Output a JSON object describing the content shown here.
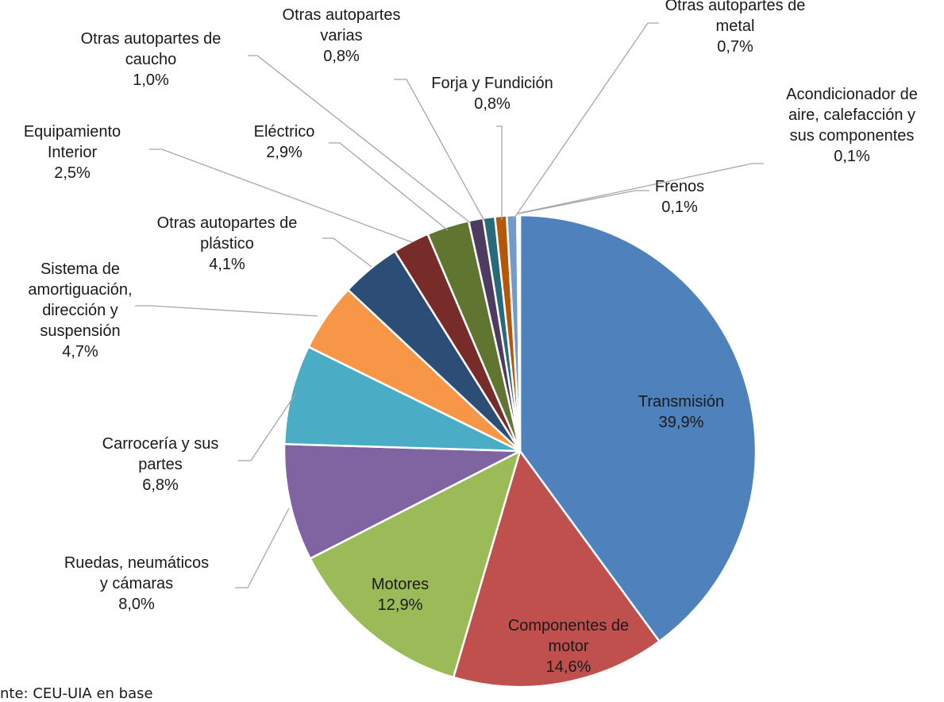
{
  "chart_data": {
    "type": "pie",
    "slices": [
      {
        "label": [
          "Transmisión"
        ],
        "pct": "39,9%",
        "value": 39.9,
        "color": "#4f81bd"
      },
      {
        "label": [
          "Componentes de",
          "motor"
        ],
        "pct": "14,6%",
        "value": 14.6,
        "color": "#c0504d"
      },
      {
        "label": [
          "Motores"
        ],
        "pct": "12,9%",
        "value": 12.9,
        "color": "#9bbb59"
      },
      {
        "label": [
          "Ruedas, neumáticos",
          "y cámaras"
        ],
        "pct": "8,0%",
        "value": 8.0,
        "color": "#8064a2"
      },
      {
        "label": [
          "Carrocería y sus",
          "partes"
        ],
        "pct": "6,8%",
        "value": 6.8,
        "color": "#4bacc6"
      },
      {
        "label": [
          "Sistema de",
          "amortiguación,",
          "dirección y",
          "suspensión"
        ],
        "pct": "4,7%",
        "value": 4.7,
        "color": "#f79646"
      },
      {
        "label": [
          "Otras autopartes de",
          "plástico"
        ],
        "pct": "4,1%",
        "value": 4.1,
        "color": "#2c4d75"
      },
      {
        "label": [
          "Equipamiento",
          "Interior"
        ],
        "pct": "2,5%",
        "value": 2.5,
        "color": "#772c2a"
      },
      {
        "label": [
          "Eléctrico"
        ],
        "pct": "2,9%",
        "value": 2.9,
        "color": "#5f7530"
      },
      {
        "label": [
          "Otras autopartes de",
          "caucho"
        ],
        "pct": "1,0%",
        "value": 1.0,
        "color": "#4d3b62"
      },
      {
        "label": [
          "Otras autopartes",
          "varias"
        ],
        "pct": "0,8%",
        "value": 0.8,
        "color": "#276a7c"
      },
      {
        "label": [
          "Forja y Fundición"
        ],
        "pct": "0,8%",
        "value": 0.8,
        "color": "#b65708"
      },
      {
        "label": [
          "Otras autopartes de",
          "metal"
        ],
        "pct": "0,7%",
        "value": 0.7,
        "color": "#729aca"
      },
      {
        "label": [
          "Acondicionador de",
          "aire, calefacción y",
          "sus componentes"
        ],
        "pct": "0,1%",
        "value": 0.1,
        "color": "#d99694"
      },
      {
        "label": [
          "Frenos"
        ],
        "pct": "0,1%",
        "value": 0.1,
        "color": "#c3d69b"
      }
    ]
  },
  "footer": {
    "source": "nte: CEU-UIA en base"
  }
}
